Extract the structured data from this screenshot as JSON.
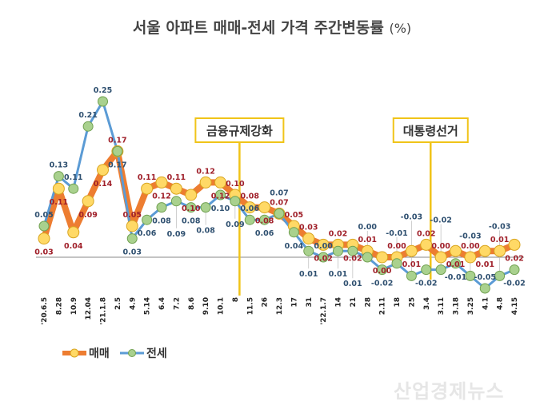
{
  "chart_data": {
    "type": "line",
    "title": "서울 아파트 매매-전세 가격 주간변동률",
    "title_unit": "(%)",
    "categories": [
      "'20.6.5",
      "8.28",
      "10.9",
      "12.04",
      "'21.1.8",
      "2.5",
      "4.9",
      "5.14",
      "6.4",
      "7.2",
      "8.6",
      "9.10",
      "10.1",
      "8",
      "11.5",
      "26",
      "12.3",
      "17",
      "31",
      "'22.1.7",
      "14",
      "21",
      "28",
      "2.11",
      "18",
      "25",
      "3.4",
      "3.11",
      "3.18",
      "3.25",
      "4.1",
      "4.8",
      "4.15"
    ],
    "series": [
      {
        "name": "매매",
        "color": "#ed7d31",
        "marker_color": "#ffd966",
        "label_color": "#a0202a",
        "values": [
          0.03,
          0.11,
          0.04,
          0.09,
          0.14,
          0.17,
          0.05,
          0.11,
          0.12,
          0.11,
          0.1,
          0.12,
          0.12,
          0.1,
          0.08,
          0.08,
          0.07,
          0.05,
          0.03,
          0.02,
          0.02,
          0.02,
          0.01,
          0.0,
          0.0,
          0.01,
          0.02,
          0.0,
          0.01,
          0.0,
          0.01,
          0.01,
          0.02
        ]
      },
      {
        "name": "전세",
        "color": "#5b9bd5",
        "marker_color": "#a9d18e",
        "label_color": "#2f5070",
        "values": [
          0.05,
          0.13,
          0.11,
          0.21,
          0.25,
          0.17,
          0.03,
          0.06,
          0.08,
          0.09,
          0.08,
          0.08,
          0.1,
          0.09,
          0.06,
          0.06,
          0.07,
          0.04,
          0.01,
          0.0,
          0.01,
          0.01,
          0.0,
          -0.02,
          -0.01,
          -0.03,
          -0.02,
          -0.02,
          -0.01,
          -0.03,
          -0.05,
          -0.03,
          -0.02
        ]
      }
    ],
    "annotations": [
      {
        "text": "금융규제강화",
        "after_category": "8"
      },
      {
        "text": "대통령선거",
        "after_category": "3.4"
      }
    ],
    "grid": false,
    "legend": "bottom-left",
    "ylim": [
      -0.06,
      0.27
    ]
  },
  "watermark": "산업경제뉴스"
}
